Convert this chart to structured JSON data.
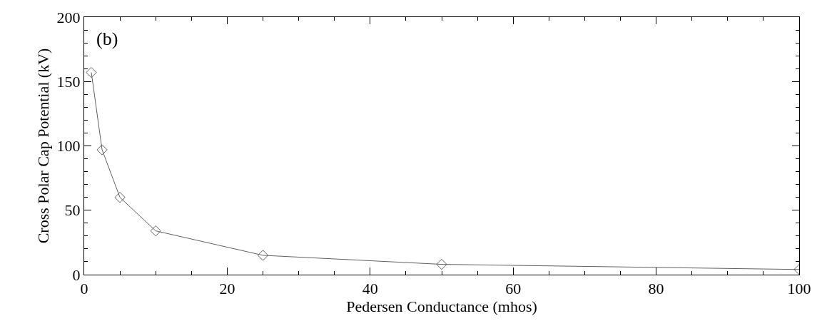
{
  "chart_data": {
    "type": "line",
    "xlabel": "Pedersen Conductance (mhos)",
    "ylabel": "Cross Polar Cap Potential (kV)",
    "x": [
      1,
      2.5,
      5,
      10,
      25,
      50,
      100
    ],
    "series": [
      {
        "color": "#606060",
        "values": [
          157,
          97,
          60,
          34,
          15,
          8,
          4
        ]
      }
    ],
    "marker": "diamond",
    "line_style": "solid",
    "xlim": [
      0,
      100
    ],
    "xticks": [
      0,
      20,
      40,
      60,
      80,
      100
    ],
    "ylim": [
      0,
      200
    ],
    "yticks": [
      0,
      50,
      100,
      150,
      200
    ],
    "annotations": [
      "(b)"
    ]
  }
}
